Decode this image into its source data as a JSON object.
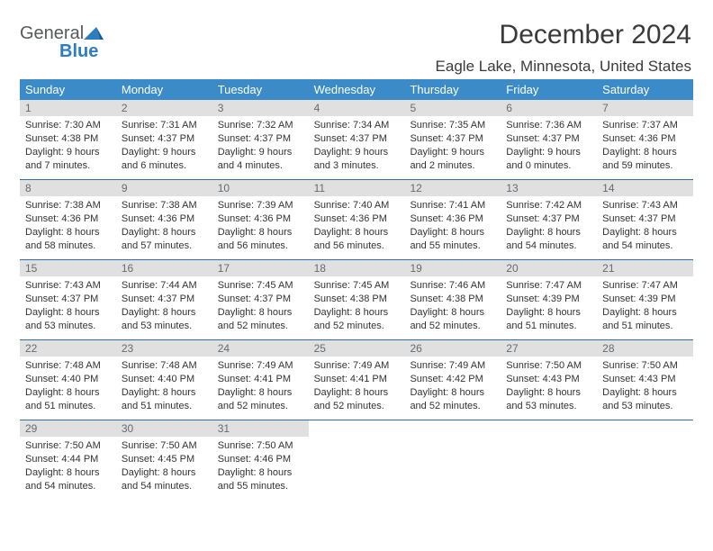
{
  "logo": {
    "word1": "General",
    "word2": "Blue"
  },
  "title": "December 2024",
  "location": "Eagle Lake, Minnesota, United States",
  "style": {
    "header_bg": "#3b8bc9",
    "header_text": "#ffffff",
    "daynum_bg": "#e0e0e0",
    "daynum_text": "#666b6f",
    "week_divider": "#2f6ea5",
    "header_fontsize": 13,
    "title_fontsize": 30,
    "location_fontsize": 17,
    "info_fontsize": 11
  },
  "day_headers": [
    "Sunday",
    "Monday",
    "Tuesday",
    "Wednesday",
    "Thursday",
    "Friday",
    "Saturday"
  ],
  "weeks": [
    [
      {
        "n": "1",
        "sr": "7:30 AM",
        "ss": "4:38 PM",
        "dl": "9 hours and 7 minutes."
      },
      {
        "n": "2",
        "sr": "7:31 AM",
        "ss": "4:37 PM",
        "dl": "9 hours and 6 minutes."
      },
      {
        "n": "3",
        "sr": "7:32 AM",
        "ss": "4:37 PM",
        "dl": "9 hours and 4 minutes."
      },
      {
        "n": "4",
        "sr": "7:34 AM",
        "ss": "4:37 PM",
        "dl": "9 hours and 3 minutes."
      },
      {
        "n": "5",
        "sr": "7:35 AM",
        "ss": "4:37 PM",
        "dl": "9 hours and 2 minutes."
      },
      {
        "n": "6",
        "sr": "7:36 AM",
        "ss": "4:37 PM",
        "dl": "9 hours and 0 minutes."
      },
      {
        "n": "7",
        "sr": "7:37 AM",
        "ss": "4:36 PM",
        "dl": "8 hours and 59 minutes."
      }
    ],
    [
      {
        "n": "8",
        "sr": "7:38 AM",
        "ss": "4:36 PM",
        "dl": "8 hours and 58 minutes."
      },
      {
        "n": "9",
        "sr": "7:38 AM",
        "ss": "4:36 PM",
        "dl": "8 hours and 57 minutes."
      },
      {
        "n": "10",
        "sr": "7:39 AM",
        "ss": "4:36 PM",
        "dl": "8 hours and 56 minutes."
      },
      {
        "n": "11",
        "sr": "7:40 AM",
        "ss": "4:36 PM",
        "dl": "8 hours and 56 minutes."
      },
      {
        "n": "12",
        "sr": "7:41 AM",
        "ss": "4:36 PM",
        "dl": "8 hours and 55 minutes."
      },
      {
        "n": "13",
        "sr": "7:42 AM",
        "ss": "4:37 PM",
        "dl": "8 hours and 54 minutes."
      },
      {
        "n": "14",
        "sr": "7:43 AM",
        "ss": "4:37 PM",
        "dl": "8 hours and 54 minutes."
      }
    ],
    [
      {
        "n": "15",
        "sr": "7:43 AM",
        "ss": "4:37 PM",
        "dl": "8 hours and 53 minutes."
      },
      {
        "n": "16",
        "sr": "7:44 AM",
        "ss": "4:37 PM",
        "dl": "8 hours and 53 minutes."
      },
      {
        "n": "17",
        "sr": "7:45 AM",
        "ss": "4:37 PM",
        "dl": "8 hours and 52 minutes."
      },
      {
        "n": "18",
        "sr": "7:45 AM",
        "ss": "4:38 PM",
        "dl": "8 hours and 52 minutes."
      },
      {
        "n": "19",
        "sr": "7:46 AM",
        "ss": "4:38 PM",
        "dl": "8 hours and 52 minutes."
      },
      {
        "n": "20",
        "sr": "7:47 AM",
        "ss": "4:39 PM",
        "dl": "8 hours and 51 minutes."
      },
      {
        "n": "21",
        "sr": "7:47 AM",
        "ss": "4:39 PM",
        "dl": "8 hours and 51 minutes."
      }
    ],
    [
      {
        "n": "22",
        "sr": "7:48 AM",
        "ss": "4:40 PM",
        "dl": "8 hours and 51 minutes."
      },
      {
        "n": "23",
        "sr": "7:48 AM",
        "ss": "4:40 PM",
        "dl": "8 hours and 51 minutes."
      },
      {
        "n": "24",
        "sr": "7:49 AM",
        "ss": "4:41 PM",
        "dl": "8 hours and 52 minutes."
      },
      {
        "n": "25",
        "sr": "7:49 AM",
        "ss": "4:41 PM",
        "dl": "8 hours and 52 minutes."
      },
      {
        "n": "26",
        "sr": "7:49 AM",
        "ss": "4:42 PM",
        "dl": "8 hours and 52 minutes."
      },
      {
        "n": "27",
        "sr": "7:50 AM",
        "ss": "4:43 PM",
        "dl": "8 hours and 53 minutes."
      },
      {
        "n": "28",
        "sr": "7:50 AM",
        "ss": "4:43 PM",
        "dl": "8 hours and 53 minutes."
      }
    ],
    [
      {
        "n": "29",
        "sr": "7:50 AM",
        "ss": "4:44 PM",
        "dl": "8 hours and 54 minutes."
      },
      {
        "n": "30",
        "sr": "7:50 AM",
        "ss": "4:45 PM",
        "dl": "8 hours and 54 minutes."
      },
      {
        "n": "31",
        "sr": "7:50 AM",
        "ss": "4:46 PM",
        "dl": "8 hours and 55 minutes."
      },
      null,
      null,
      null,
      null
    ]
  ]
}
